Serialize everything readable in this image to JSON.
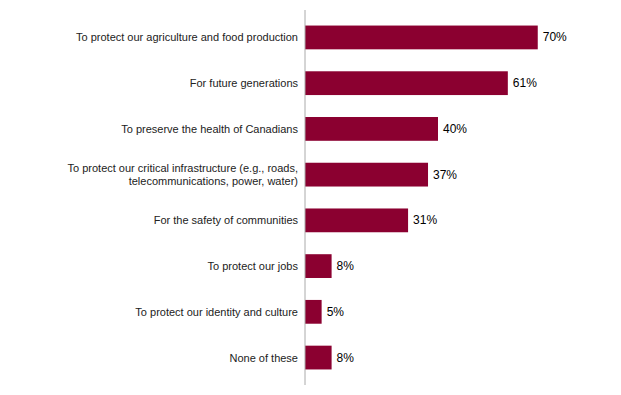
{
  "chart_data": {
    "type": "bar",
    "orientation": "horizontal",
    "categories": [
      "None of these",
      "To protect our identity and culture",
      "To protect our jobs",
      "For the safety of communities",
      "To protect our critical infrastructure (e.g., roads,\ntelecommunications, power, water)",
      "To preserve the health of Canadians",
      "For future generations",
      "To protect our agriculture and food production"
    ],
    "values": [
      8,
      5,
      8,
      31,
      37,
      40,
      61,
      70
    ],
    "value_labels": [
      "8%",
      "5%",
      "8%",
      "31%",
      "37%",
      "40%",
      "61%",
      "70%"
    ],
    "data_labels": true,
    "color": "#8B0030",
    "xlim": [
      0,
      80
    ],
    "tick_labels": "y"
  }
}
